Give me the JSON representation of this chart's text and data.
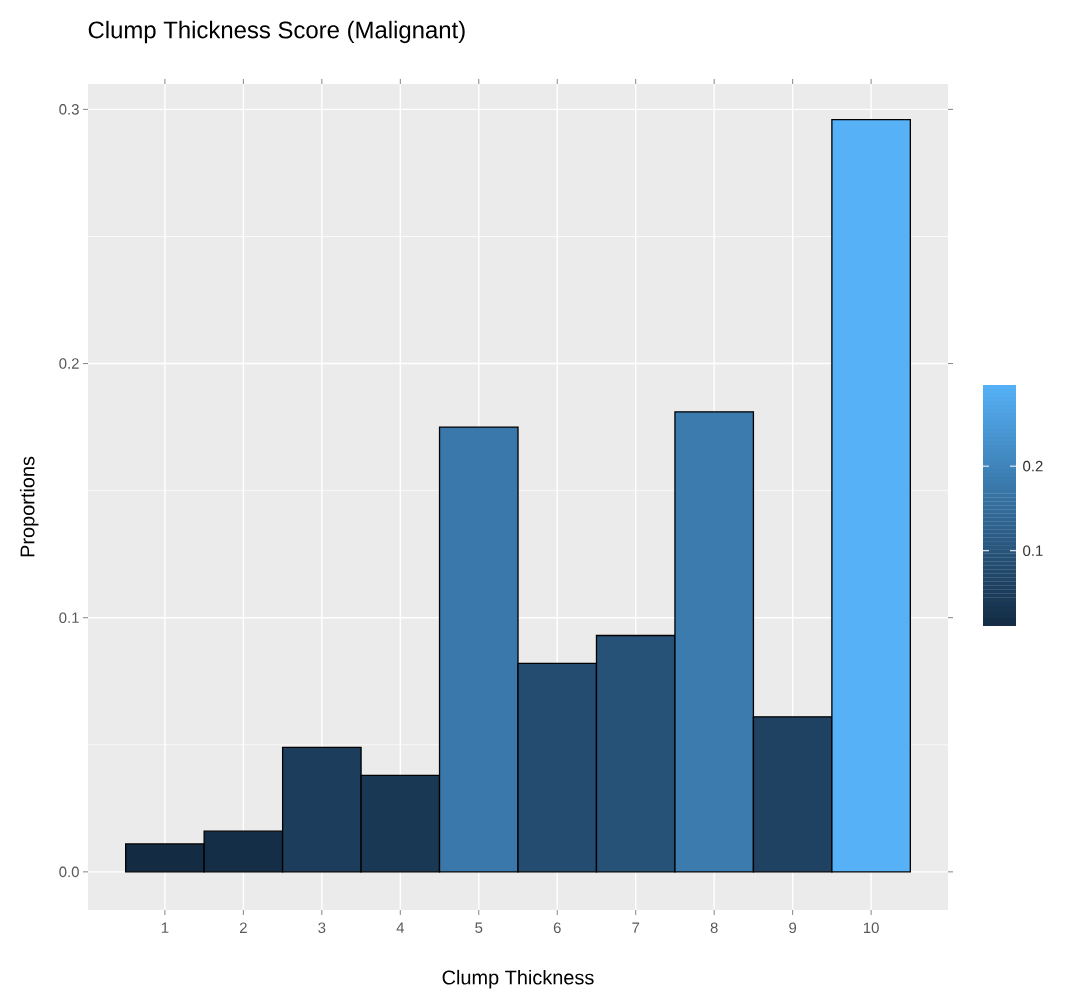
{
  "chart_data": {
    "type": "bar",
    "title": "Clump Thickness Score (Malignant)",
    "xlabel": "Clump Thickness",
    "ylabel": "Proportions",
    "categories": [
      "1",
      "2",
      "3",
      "4",
      "5",
      "6",
      "7",
      "8",
      "9",
      "10"
    ],
    "values": [
      0.011,
      0.016,
      0.049,
      0.038,
      0.175,
      0.082,
      0.093,
      0.181,
      0.061,
      0.296
    ],
    "colors": [
      "#132b43",
      "#142e47",
      "#1c3d5b",
      "#193854",
      "#3a78ab",
      "#244c70",
      "#265277",
      "#3b7bae",
      "#1f4262",
      "#56b1f7"
    ],
    "ylim": [
      -0.015,
      0.31
    ],
    "yticks": [
      {
        "value": 0,
        "label": "0.0"
      },
      0.1,
      0.2,
      0.3
    ],
    "clim": [
      0.011,
      0.296
    ],
    "cticks": [
      0.1,
      0.2
    ],
    "grid": true
  }
}
